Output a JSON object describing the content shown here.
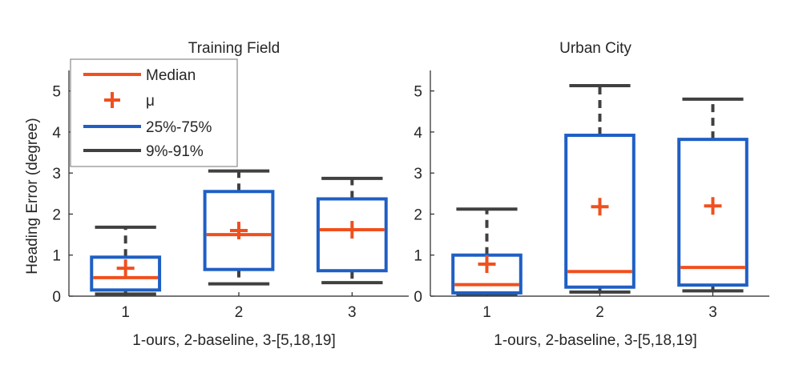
{
  "colors": {
    "median": "#f0501e",
    "mean": "#f0501e",
    "box": "#1f5fc4",
    "whisker": "#404040",
    "axis": "#262626"
  },
  "legend": {
    "items": [
      {
        "label": "Median",
        "style": "median-line"
      },
      {
        "label": "μ",
        "style": "mean-plus"
      },
      {
        "label": "25%-75%",
        "style": "box-line"
      },
      {
        "label": "9%-91%",
        "style": "whisker-line"
      }
    ]
  },
  "ylabel": "Heading Error (degree)",
  "chart_data": [
    {
      "type": "box",
      "title": "Training Field",
      "xlabel": "1-ours, 2-baseline, 3-[5,18,19]",
      "ylabel": "Heading Error (degree)",
      "categories": [
        "1",
        "2",
        "3"
      ],
      "xlim": [
        0.5,
        3.5
      ],
      "ylim": [
        0,
        5.5
      ],
      "yticks": [
        0,
        1,
        2,
        3,
        4,
        5
      ],
      "boxes": [
        {
          "whisker_low": 0.05,
          "q1": 0.15,
          "median": 0.45,
          "q3": 0.95,
          "whisker_high": 1.68,
          "mean": 0.68
        },
        {
          "whisker_low": 0.3,
          "q1": 0.65,
          "median": 1.5,
          "q3": 2.55,
          "whisker_high": 3.05,
          "mean": 1.6
        },
        {
          "whisker_low": 0.33,
          "q1": 0.62,
          "median": 1.62,
          "q3": 2.37,
          "whisker_high": 2.87,
          "mean": 1.62
        }
      ]
    },
    {
      "type": "box",
      "title": "Urban City",
      "xlabel": "1-ours, 2-baseline, 3-[5,18,19]",
      "categories": [
        "1",
        "2",
        "3"
      ],
      "xlim": [
        0.5,
        3.5
      ],
      "ylim": [
        0,
        5.5
      ],
      "yticks": [
        0,
        1,
        2,
        3,
        4,
        5
      ],
      "boxes": [
        {
          "whisker_low": 0.05,
          "q1": 0.08,
          "median": 0.28,
          "q3": 1.0,
          "whisker_high": 2.12,
          "mean": 0.78
        },
        {
          "whisker_low": 0.1,
          "q1": 0.22,
          "median": 0.6,
          "q3": 3.92,
          "whisker_high": 5.13,
          "mean": 2.18
        },
        {
          "whisker_low": 0.13,
          "q1": 0.27,
          "median": 0.7,
          "q3": 3.82,
          "whisker_high": 4.8,
          "mean": 2.2
        }
      ]
    }
  ]
}
